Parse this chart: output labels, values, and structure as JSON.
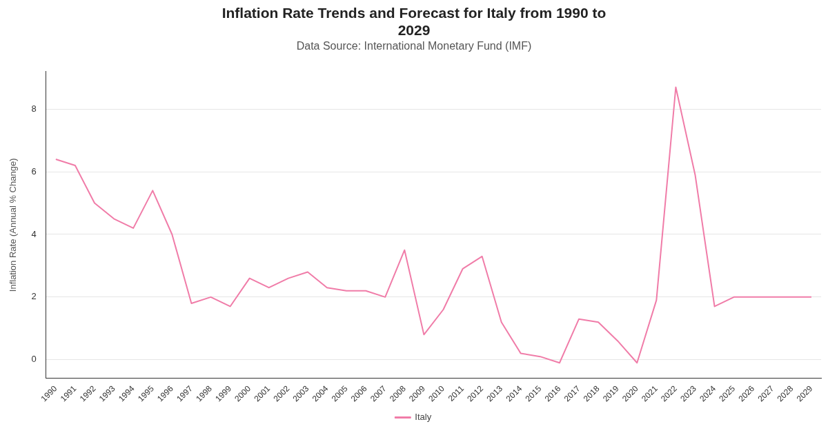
{
  "chart_data": {
    "type": "line",
    "title": "Inflation Rate Trends and Forecast for Italy from 1990 to 2029",
    "subtitle": "Data Source: International Monetary Fund (IMF)",
    "ylabel": "Inflation Rate (Annual % Change)",
    "categories": [
      "1990",
      "1991",
      "1992",
      "1993",
      "1994",
      "1995",
      "1996",
      "1997",
      "1998",
      "1999",
      "2000",
      "2001",
      "2002",
      "2003",
      "2004",
      "2005",
      "2006",
      "2007",
      "2008",
      "2009",
      "2010",
      "2011",
      "2012",
      "2013",
      "2014",
      "2015",
      "2016",
      "2017",
      "2018",
      "2019",
      "2020",
      "2021",
      "2022",
      "2023",
      "2024",
      "2025",
      "2026",
      "2027",
      "2028",
      "2029"
    ],
    "series": [
      {
        "name": "Italy",
        "color": "#f07ca8",
        "values": [
          6.4,
          6.2,
          5.0,
          4.5,
          4.2,
          5.4,
          4.0,
          1.8,
          2.0,
          1.7,
          2.6,
          2.3,
          2.6,
          2.8,
          2.3,
          2.2,
          2.2,
          2.0,
          3.5,
          0.8,
          1.6,
          2.9,
          3.3,
          1.2,
          0.2,
          0.1,
          -0.1,
          1.3,
          1.2,
          0.6,
          -0.1,
          1.9,
          8.7,
          5.9,
          1.7,
          2.0,
          2.0,
          2.0,
          2.0,
          2.0
        ]
      }
    ],
    "ylim": [
      -0.6,
      9.2
    ],
    "yticks": [
      0,
      2,
      4,
      6,
      8
    ],
    "grid": "y",
    "legend": "bottom",
    "marker": "none",
    "line_style": "solid"
  }
}
